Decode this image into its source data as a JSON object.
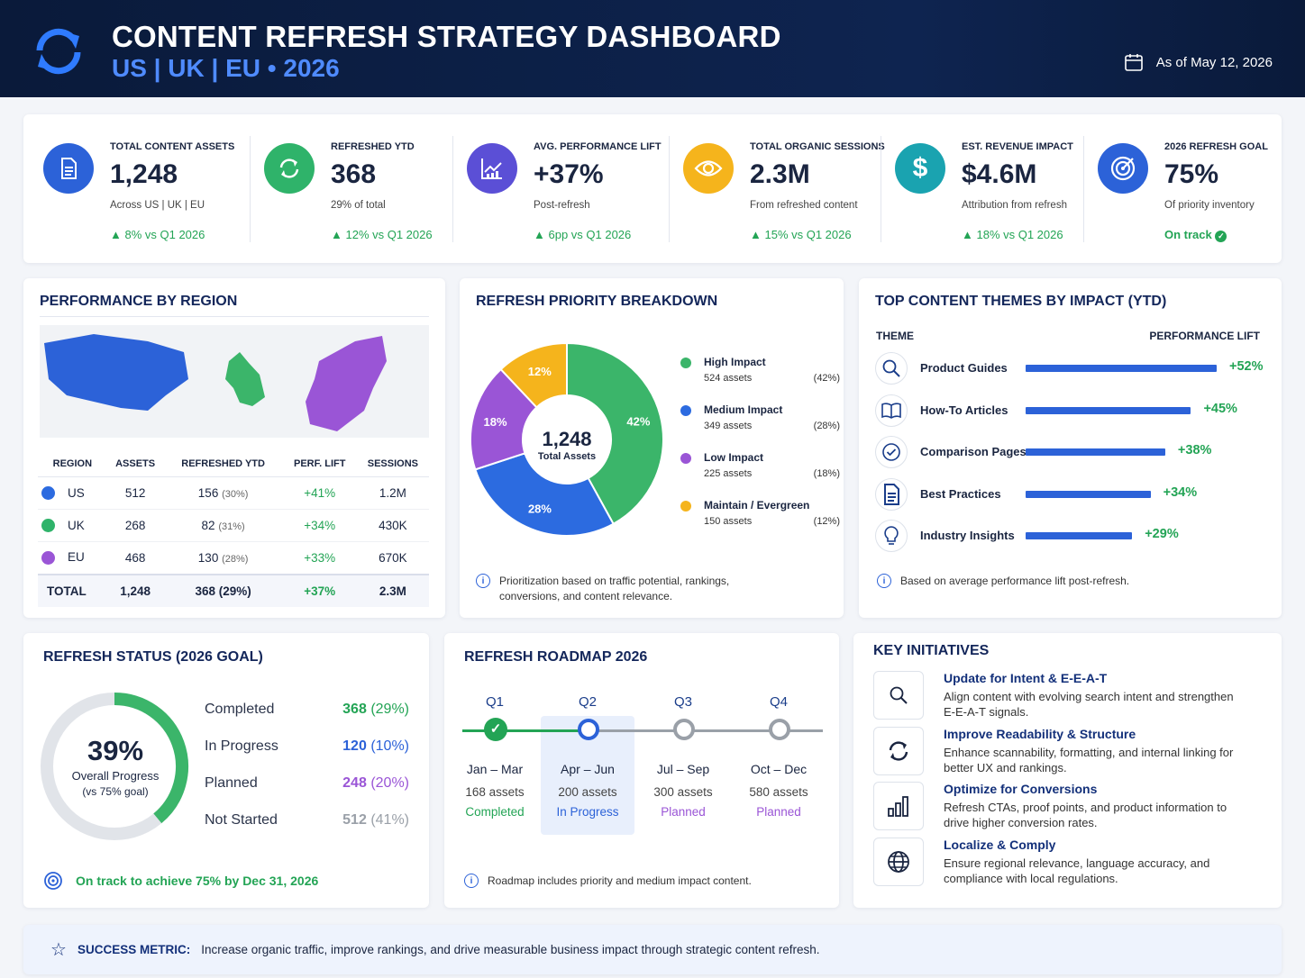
{
  "header": {
    "title": "CONTENT REFRESH STRATEGY DASHBOARD",
    "subtitle": "US | UK | EU  •  2026",
    "as_of": "As of May 12, 2026"
  },
  "kpis": [
    {
      "label": "TOTAL CONTENT ASSETS",
      "value": "1,248",
      "note": "Across US | UK | EU",
      "change": "▲ 8% vs Q1 2026",
      "icon": "document-icon",
      "color": "#2c62d8"
    },
    {
      "label": "REFRESHED YTD",
      "value": "368",
      "note": "29% of total",
      "change": "▲ 12% vs Q1 2026",
      "icon": "refresh-icon",
      "color": "#2fb36a"
    },
    {
      "label": "AVG. PERFORMANCE LIFT",
      "value": "+37%",
      "note": "Post-refresh",
      "change": "▲ 6pp vs Q1 2026",
      "icon": "growth-chart-icon",
      "color": "#5b4fd6"
    },
    {
      "label": "TOTAL ORGANIC SESSIONS",
      "value": "2.3M",
      "note": "From refreshed content",
      "change": "▲ 15% vs Q1 2026",
      "icon": "eye-icon",
      "color": "#f5b41c"
    },
    {
      "label": "EST. REVENUE IMPACT",
      "value": "$4.6M",
      "note": "Attribution from refresh",
      "change": "▲ 18% vs Q1 2026",
      "icon": "dollar-icon",
      "color": "#1aa3b0"
    },
    {
      "label": "2026 REFRESH GOAL",
      "value": "75%",
      "note": "Of priority inventory",
      "change": "On track",
      "icon": "target-icon",
      "color": "#2c62d8"
    }
  ],
  "region": {
    "title": "PERFORMANCE BY REGION",
    "columns": [
      "REGION",
      "ASSETS",
      "REFRESHED YTD",
      "PERF. LIFT",
      "SESSIONS"
    ],
    "rows": [
      {
        "region": "US",
        "assets": "512",
        "refreshed": "156",
        "pct": "(30%)",
        "lift": "+41%",
        "sessions": "1.2M",
        "color": "#2c6be0"
      },
      {
        "region": "UK",
        "assets": "268",
        "refreshed": "82",
        "pct": "(31%)",
        "lift": "+34%",
        "sessions": "430K",
        "color": "#2fb36a"
      },
      {
        "region": "EU",
        "assets": "468",
        "refreshed": "130",
        "pct": "(28%)",
        "lift": "+33%",
        "sessions": "670K",
        "color": "#9a55d6"
      }
    ],
    "total": {
      "region": "TOTAL",
      "assets": "1,248",
      "refreshed": "368 (29%)",
      "lift": "+37%",
      "sessions": "2.3M"
    }
  },
  "priority": {
    "title": "REFRESH PRIORITY BREAKDOWN",
    "center_value": "1,248",
    "center_label": "Total Assets",
    "chart_data": {
      "type": "pie",
      "categories": [
        "High Impact",
        "Medium Impact",
        "Low Impact",
        "Maintain / Evergreen"
      ],
      "values": [
        524,
        349,
        225,
        150
      ],
      "percent_labels": [
        "42%",
        "28%",
        "18%",
        "12%"
      ],
      "colors": [
        "#3bb56a",
        "#2c6be0",
        "#9a55d6",
        "#f5b41c"
      ]
    },
    "legend": [
      {
        "name": "High Impact",
        "assets": "524 assets",
        "pct": "(42%)"
      },
      {
        "name": "Medium Impact",
        "assets": "349 assets",
        "pct": "(28%)"
      },
      {
        "name": "Low Impact",
        "assets": "225 assets",
        "pct": "(18%)"
      },
      {
        "name": "Maintain / Evergreen",
        "assets": "150 assets",
        "pct": "(12%)"
      }
    ],
    "note": "Prioritization based on traffic potential, rankings, conversions, and content relevance."
  },
  "themes": {
    "title": "TOP CONTENT THEMES BY IMPACT (YTD)",
    "col_theme": "THEME",
    "col_lift": "PERFORMANCE LIFT",
    "items": [
      {
        "name": "Product Guides",
        "lift": "+52%",
        "value": 52,
        "icon": "search-icon"
      },
      {
        "name": "How-To Articles",
        "lift": "+45%",
        "value": 45,
        "icon": "book-icon"
      },
      {
        "name": "Comparison Pages",
        "lift": "+38%",
        "value": 38,
        "icon": "check-circle-icon"
      },
      {
        "name": "Best Practices",
        "lift": "+34%",
        "value": 34,
        "icon": "document-icon"
      },
      {
        "name": "Industry Insights",
        "lift": "+29%",
        "value": 29,
        "icon": "lightbulb-icon"
      }
    ],
    "note": "Based on average performance lift post-refresh."
  },
  "status": {
    "title": "REFRESH STATUS (2026 GOAL)",
    "progress": "39%",
    "progress_value": 39,
    "progress_label": "Overall Progress",
    "goal_label": "(vs 75% goal)",
    "items": [
      {
        "label": "Completed",
        "count": "368",
        "pct": "(29%)",
        "color": "#23a455"
      },
      {
        "label": "In Progress",
        "count": "120",
        "pct": "(10%)",
        "color": "#2c62d8"
      },
      {
        "label": "Planned",
        "count": "248",
        "pct": "(20%)",
        "color": "#9a55d6"
      },
      {
        "label": "Not Started",
        "count": "512",
        "pct": "(41%)",
        "color": "#9aa0a8"
      }
    ],
    "footer": "On track to achieve 75% by Dec 31, 2026"
  },
  "roadmap": {
    "title": "REFRESH ROADMAP 2026",
    "quarters": [
      {
        "q": "Q1",
        "dates": "Jan – Mar",
        "assets": "168 assets",
        "status": "Completed",
        "color": "#23a455"
      },
      {
        "q": "Q2",
        "dates": "Apr – Jun",
        "assets": "200 assets",
        "status": "In Progress",
        "color": "#2c62d8"
      },
      {
        "q": "Q3",
        "dates": "Jul – Sep",
        "assets": "300 assets",
        "status": "Planned",
        "color": "#9a55d6"
      },
      {
        "q": "Q4",
        "dates": "Oct – Dec",
        "assets": "580 assets",
        "status": "Planned",
        "color": "#9a55d6"
      }
    ],
    "note": "Roadmap includes priority and medium impact content."
  },
  "initiatives": {
    "title": "KEY INITIATIVES",
    "items": [
      {
        "title": "Update for Intent & E-E-A-T",
        "desc": "Align content with evolving search intent and strengthen E-E-A-T signals.",
        "icon": "search-icon"
      },
      {
        "title": "Improve Readability & Structure",
        "desc": "Enhance scannability, formatting, and internal linking for better UX and rankings.",
        "icon": "refresh-icon"
      },
      {
        "title": "Optimize for Conversions",
        "desc": "Refresh CTAs, proof points, and product information to drive higher conversion rates.",
        "icon": "bar-chart-icon"
      },
      {
        "title": "Localize & Comply",
        "desc": "Ensure regional relevance, language accuracy, and compliance with local regulations.",
        "icon": "globe-icon"
      }
    ]
  },
  "success": {
    "label": "SUCCESS METRIC:",
    "text": "Increase organic traffic, improve rankings, and drive measurable business impact through strategic content refresh."
  }
}
